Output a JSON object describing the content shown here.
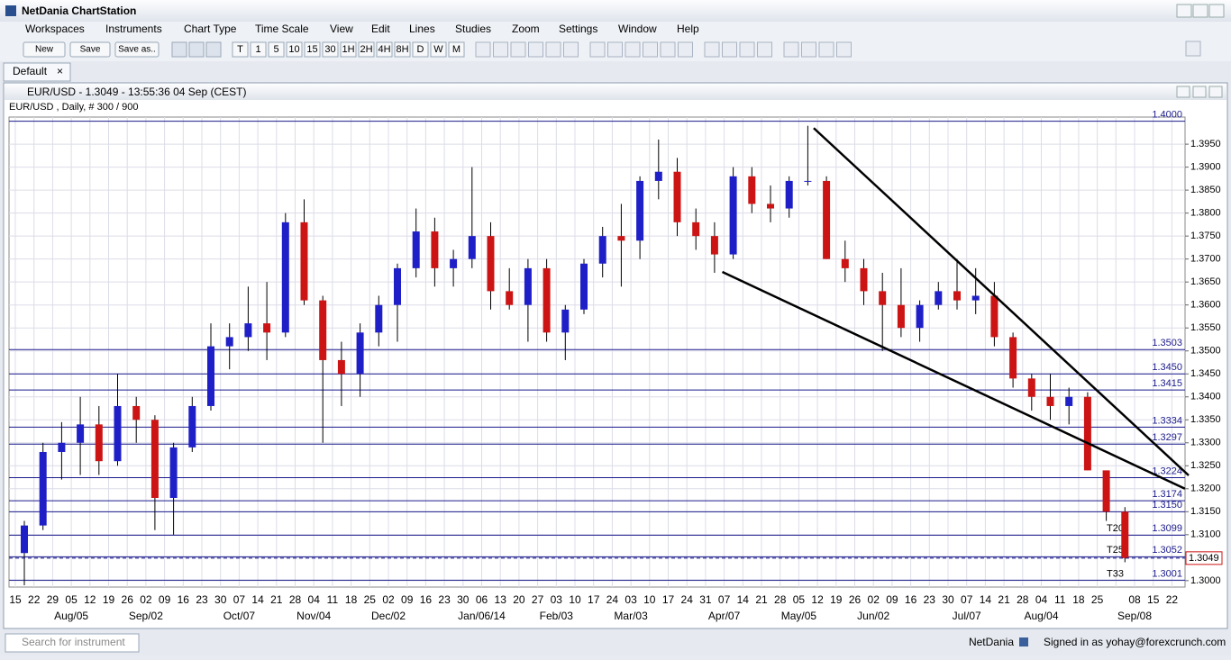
{
  "app": {
    "title": "NetDania ChartStation",
    "menus": [
      "Workspaces",
      "Instruments",
      "Chart Type",
      "Time Scale",
      "View",
      "Edit",
      "Lines",
      "Studies",
      "Zoom",
      "Settings",
      "Window",
      "Help"
    ],
    "file_buttons": [
      "New",
      "Save",
      "Save as.."
    ],
    "timeframes": [
      "T",
      "1",
      "5",
      "10",
      "15",
      "30",
      "1H",
      "2H",
      "4H",
      "8H",
      "D",
      "W",
      "M"
    ],
    "tab": "Default",
    "window_title": "EUR/USD - 1.3049 - 13:55:36  04 Sep (CEST)",
    "search_placeholder": "Search for instrument",
    "status_brand": "NetDania",
    "status_user": "Signed in as yohay@forexcrunch.com"
  },
  "chart_data": {
    "type": "candlestick",
    "subtitle": "EUR/USD , Daily, # 300 / 900",
    "categories": [
      "15",
      "22",
      "29",
      "05",
      "12",
      "19",
      "26",
      "02",
      "09",
      "16",
      "23",
      "30",
      "07",
      "14",
      "21",
      "28",
      "04",
      "11",
      "18",
      "25",
      "02",
      "09",
      "16",
      "23",
      "30",
      "06",
      "13",
      "20",
      "27",
      "03",
      "10",
      "17",
      "24",
      "03",
      "10",
      "17",
      "24",
      "31",
      "07",
      "14",
      "21",
      "28",
      "05",
      "12",
      "19",
      "26",
      "02",
      "09",
      "16",
      "23",
      "30",
      "07",
      "14",
      "21",
      "28",
      "04",
      "11",
      "18",
      "25",
      null,
      "08",
      "15",
      "22"
    ],
    "month_labels": [
      null,
      null,
      null,
      "Aug/05",
      null,
      null,
      null,
      "Sep/02",
      null,
      null,
      null,
      null,
      "Oct/07",
      null,
      null,
      null,
      "Nov/04",
      null,
      null,
      null,
      "Dec/02",
      null,
      null,
      null,
      null,
      "Jan/06/14",
      null,
      null,
      null,
      "Feb/03",
      null,
      null,
      null,
      "Mar/03",
      null,
      null,
      null,
      null,
      "Apr/07",
      null,
      null,
      null,
      "May/05",
      null,
      null,
      null,
      "Jun/02",
      null,
      null,
      null,
      null,
      "Jul/07",
      null,
      null,
      null,
      "Aug/04",
      null,
      null,
      null,
      null,
      "Sep/08",
      null,
      null
    ],
    "open": [
      1.306,
      1.312,
      1.328,
      1.33,
      1.334,
      1.326,
      1.338,
      1.335,
      1.318,
      1.329,
      1.338,
      1.351,
      1.353,
      1.356,
      1.354,
      1.378,
      1.361,
      1.348,
      1.345,
      1.354,
      1.36,
      1.368,
      1.376,
      1.368,
      1.37,
      1.375,
      1.363,
      1.36,
      1.368,
      1.354,
      1.359,
      1.369,
      1.375,
      1.374,
      1.387,
      1.389,
      1.378,
      1.375,
      1.371,
      1.388,
      1.382,
      1.381,
      1.387,
      1.387,
      1.37,
      1.368,
      1.363,
      1.36,
      1.355,
      1.36,
      1.363,
      1.361,
      1.362,
      1.353,
      1.344,
      1.34,
      1.338,
      1.34,
      1.324,
      1.315,
      null,
      null,
      null
    ],
    "high": [
      1.313,
      1.33,
      1.3345,
      1.34,
      1.338,
      1.345,
      1.34,
      1.336,
      1.33,
      1.34,
      1.356,
      1.356,
      1.364,
      1.365,
      1.38,
      1.383,
      1.362,
      1.352,
      1.356,
      1.362,
      1.369,
      1.381,
      1.379,
      1.372,
      1.39,
      1.378,
      1.368,
      1.37,
      1.37,
      1.36,
      1.37,
      1.377,
      1.382,
      1.388,
      1.396,
      1.392,
      1.381,
      1.378,
      1.39,
      1.39,
      1.386,
      1.388,
      1.399,
      1.388,
      1.374,
      1.37,
      1.367,
      1.368,
      1.361,
      1.365,
      1.37,
      1.368,
      1.365,
      1.354,
      1.345,
      1.345,
      1.342,
      1.341,
      1.323,
      1.316,
      null,
      null,
      null
    ],
    "low": [
      1.299,
      1.311,
      1.322,
      1.323,
      1.323,
      1.325,
      1.33,
      1.311,
      1.31,
      1.328,
      1.337,
      1.346,
      1.35,
      1.348,
      1.353,
      1.36,
      1.33,
      1.338,
      1.34,
      1.351,
      1.352,
      1.366,
      1.364,
      1.364,
      1.368,
      1.359,
      1.359,
      1.352,
      1.352,
      1.348,
      1.358,
      1.366,
      1.364,
      1.37,
      1.383,
      1.375,
      1.372,
      1.367,
      1.37,
      1.38,
      1.378,
      1.379,
      1.386,
      1.37,
      1.365,
      1.36,
      1.35,
      1.353,
      1.352,
      1.359,
      1.359,
      1.358,
      1.351,
      1.342,
      1.337,
      1.335,
      1.334,
      1.324,
      1.313,
      1.304,
      null,
      null,
      null
    ],
    "close": [
      1.312,
      1.328,
      1.33,
      1.334,
      1.326,
      1.338,
      1.335,
      1.318,
      1.329,
      1.338,
      1.351,
      1.353,
      1.356,
      1.354,
      1.378,
      1.361,
      1.348,
      1.345,
      1.354,
      1.36,
      1.368,
      1.376,
      1.368,
      1.37,
      1.375,
      1.363,
      1.36,
      1.368,
      1.354,
      1.359,
      1.369,
      1.375,
      1.374,
      1.387,
      1.389,
      1.378,
      1.375,
      1.371,
      1.388,
      1.382,
      1.381,
      1.387,
      1.387,
      1.37,
      1.368,
      1.363,
      1.36,
      1.355,
      1.36,
      1.363,
      1.361,
      1.362,
      1.353,
      1.344,
      1.34,
      1.338,
      1.34,
      1.324,
      1.315,
      1.3049,
      null,
      null,
      null
    ],
    "up_color": "#1f1fc8",
    "down_color": "#cc1414",
    "ylim": [
      1.2986,
      1.4009
    ],
    "yticks": [
      {
        "value": 1.3,
        "label": "1.3000"
      },
      {
        "value": 1.305,
        "label": "1.3050"
      },
      {
        "value": 1.31,
        "label": "1.3100"
      },
      {
        "value": 1.315,
        "label": "1.3150"
      },
      {
        "value": 1.32,
        "label": "1.3200"
      },
      {
        "value": 1.325,
        "label": "1.3250"
      },
      {
        "value": 1.33,
        "label": "1.3300"
      },
      {
        "value": 1.335,
        "label": "1.3350"
      },
      {
        "value": 1.34,
        "label": "1.3400"
      },
      {
        "value": 1.345,
        "label": "1.3450"
      },
      {
        "value": 1.35,
        "label": "1.3500"
      },
      {
        "value": 1.355,
        "label": "1.3550"
      },
      {
        "value": 1.36,
        "label": "1.3600"
      },
      {
        "value": 1.365,
        "label": "1.3650"
      },
      {
        "value": 1.37,
        "label": "1.3700"
      },
      {
        "value": 1.375,
        "label": "1.3750"
      },
      {
        "value": 1.38,
        "label": "1.3800"
      },
      {
        "value": 1.385,
        "label": "1.3850"
      },
      {
        "value": 1.39,
        "label": "1.3900"
      },
      {
        "value": 1.395,
        "label": "1.3950"
      }
    ],
    "grid": true,
    "levels": [
      {
        "value": 1.4,
        "label": "1.4000"
      },
      {
        "value": 1.3503,
        "label": "1.3503"
      },
      {
        "value": 1.345,
        "label": "1.3450"
      },
      {
        "value": 1.3415,
        "label": "1.3415"
      },
      {
        "value": 1.3334,
        "label": "1.3334"
      },
      {
        "value": 1.3297,
        "label": "1.3297"
      },
      {
        "value": 1.3224,
        "label": "1.3224"
      },
      {
        "value": 1.3174,
        "label": "1.3174"
      },
      {
        "value": 1.315,
        "label": "1.3150"
      },
      {
        "value": 1.3099,
        "label": "1.3099",
        "tag": "T20"
      },
      {
        "value": 1.3052,
        "label": "1.3052",
        "tag": "T25"
      },
      {
        "value": 1.3001,
        "label": "1.3001",
        "tag": "T33"
      }
    ],
    "level_color": "#1a1a8c",
    "last_price": {
      "value": 1.3049,
      "label": "1.3049"
    },
    "trend_lines": [
      {
        "x": [
          42.8,
          62.9
        ],
        "y": [
          1.3985,
          1.3229
        ]
      },
      {
        "x": [
          37.9,
          62.7
        ],
        "y": [
          1.3672,
          1.32
        ]
      }
    ]
  }
}
